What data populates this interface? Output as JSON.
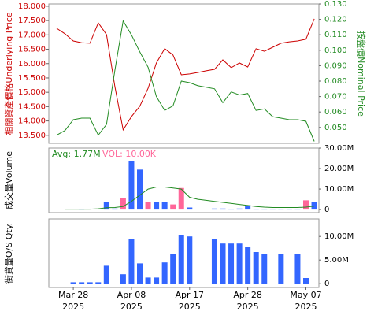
{
  "chart_data": [
    {
      "type": "line",
      "y_label": "相關資產價格Underlying Price",
      "y_label_color": "#cc0000",
      "y2_label": "按盤價Nominal Price",
      "y2_label_color": "#228b22",
      "ylim": [
        13.22,
        18.08
      ],
      "yticks": [
        {
          "value": 13.5,
          "label": "13.500"
        },
        {
          "value": 14,
          "label": "14.000"
        },
        {
          "value": 14.5,
          "label": "14.500"
        },
        {
          "value": 15,
          "label": "15.000"
        },
        {
          "value": 15.5,
          "label": "15.500"
        },
        {
          "value": 16,
          "label": "16.000"
        },
        {
          "value": 16.5,
          "label": "16.500"
        },
        {
          "value": 17,
          "label": "17.000"
        },
        {
          "value": 17.5,
          "label": "17.500"
        },
        {
          "value": 18,
          "label": "18.000"
        }
      ],
      "y2lim": [
        0.0397,
        0.13
      ],
      "y2ticks": [
        {
          "value": 0.05,
          "label": "0.050"
        },
        {
          "value": 0.06,
          "label": "0.060"
        },
        {
          "value": 0.07,
          "label": "0.070"
        },
        {
          "value": 0.08,
          "label": "0.080"
        },
        {
          "value": 0.09,
          "label": "0.090"
        },
        {
          "value": 0.1,
          "label": "0.100"
        },
        {
          "value": 0.11,
          "label": "0.110"
        },
        {
          "value": 0.12,
          "label": "0.120"
        },
        {
          "value": 0.13,
          "label": "0.130"
        }
      ],
      "series": [
        {
          "type": "line",
          "color": "#cc0000",
          "values": [
            17.23,
            17.04,
            16.79,
            16.73,
            16.71,
            17.42,
            17.01,
            15.2,
            13.69,
            14.15,
            14.51,
            15.14,
            16.02,
            16.52,
            16.3,
            15.61,
            15.64,
            15.69,
            15.75,
            15.8,
            16.13,
            15.86,
            16.02,
            15.88,
            16.52,
            16.43,
            16.57,
            16.71,
            16.76,
            16.79,
            16.85,
            17.56
          ]
        },
        {
          "type": "line",
          "axis": "y2",
          "color": "#228b22",
          "values": [
            0.045,
            0.048,
            0.055,
            0.056,
            0.056,
            0.045,
            0.052,
            0.087,
            0.119,
            0.11,
            0.099,
            0.089,
            0.07,
            0.061,
            0.064,
            0.08,
            0.079,
            0.077,
            0.076,
            0.075,
            0.066,
            0.073,
            0.071,
            0.072,
            0.061,
            0.062,
            0.057,
            0.056,
            0.055,
            0.055,
            0.054,
            0.041
          ]
        }
      ]
    },
    {
      "type": "bar",
      "y_label": "成交量Volume",
      "y_label_color": "#000000",
      "annotations": [
        {
          "text": "Avg: 1.77M",
          "color": "#228b22"
        },
        {
          "text": "VOL: 10.00K",
          "color": "#ff6699"
        }
      ],
      "ylim": [
        -1500000,
        30000000
      ],
      "yticks": [
        0,
        {
          "value": 10000000,
          "label": "10.00M"
        },
        {
          "value": 20000000,
          "label": "20.00M"
        },
        {
          "value": 30000000,
          "label": "30.00M"
        }
      ],
      "series": [
        {
          "type": "bar",
          "values": [
            0,
            0,
            0,
            300000,
            0,
            0,
            3500000,
            500000,
            5500000,
            23500000,
            19500000,
            3500000,
            3500000,
            3500000,
            2500000,
            10500000,
            1000000,
            0,
            0,
            500000,
            500000,
            300000,
            500000,
            2000000,
            300000,
            300000,
            300000,
            300000,
            300000,
            300000,
            4500000,
            3500000
          ],
          "colors": [
            "#3366ff",
            "#3366ff",
            "#3366ff",
            "#3366ff",
            "#3366ff",
            "#3366ff",
            "#3366ff",
            "#3366ff",
            "#ff6699",
            "#3366ff",
            "#3366ff",
            "#ff6699",
            "#3366ff",
            "#3366ff",
            "#ff6699",
            "#ff6699",
            "#3366ff",
            "#3366ff",
            "#3366ff",
            "#3366ff",
            "#3366ff",
            "#3366ff",
            "#3366ff",
            "#3366ff",
            "#3366ff",
            "#3366ff",
            "#3366ff",
            "#3366ff",
            "#3366ff",
            "#3366ff",
            "#ff6699",
            "#3366ff"
          ]
        },
        {
          "type": "line",
          "color": "#228b22",
          "values": [
            null,
            200000,
            200000,
            200000,
            200000,
            400000,
            900000,
            1000000,
            1500000,
            4000000,
            7000000,
            10000000,
            11000000,
            11000000,
            10500000,
            10000000,
            6000000,
            5000000,
            4500000,
            4000000,
            3500000,
            3000000,
            2500000,
            2000000,
            1500000,
            1200000,
            1000000,
            1000000,
            1000000,
            1000000,
            1200000,
            1700000
          ]
        }
      ]
    },
    {
      "type": "bar",
      "y_label": "街貨量O/S Qty.",
      "y_label_color": "#000000",
      "categories": [
        null,
        null,
        "Mar 28 2025",
        null,
        null,
        null,
        null,
        null,
        null,
        "Apr 08 2025",
        null,
        null,
        null,
        null,
        null,
        null,
        "Apr 17 2025",
        null,
        null,
        null,
        null,
        null,
        null,
        "Apr 28 2025",
        null,
        null,
        null,
        null,
        null,
        null,
        "May 07 2025",
        null
      ],
      "ylim": [
        -800000,
        13700000
      ],
      "yticks": [
        0,
        {
          "value": 5000000,
          "label": "5.00M"
        },
        {
          "value": 10000000,
          "label": "10.00M"
        }
      ],
      "series": [
        {
          "type": "bar",
          "color": "#3366ff",
          "values": [
            0,
            0,
            300000,
            300000,
            300000,
            300000,
            3800000,
            0,
            2000000,
            9500000,
            4300000,
            1300000,
            1300000,
            4500000,
            6300000,
            10200000,
            10000000,
            0,
            0,
            9500000,
            8500000,
            8500000,
            8500000,
            7700000,
            6700000,
            6200000,
            0,
            6200000,
            0,
            6200000,
            1200000,
            0
          ]
        }
      ]
    }
  ]
}
